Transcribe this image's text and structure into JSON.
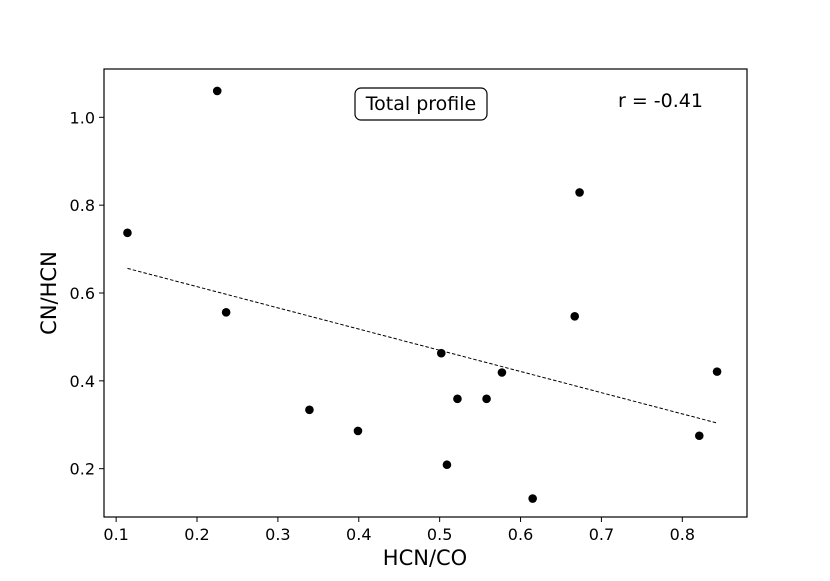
{
  "chart_data": {
    "type": "scatter",
    "title": "",
    "xlabel": "HCN/CO",
    "ylabel": "CN/HCN",
    "xlim": [
      0.085,
      0.88
    ],
    "ylim": [
      0.09,
      1.11
    ],
    "xticks": [
      0.1,
      0.2,
      0.3,
      0.4,
      0.5,
      0.6,
      0.7,
      0.8
    ],
    "xtick_labels": [
      "0.1",
      "0.2",
      "0.3",
      "0.4",
      "0.5",
      "0.6",
      "0.7",
      "0.8"
    ],
    "yticks": [
      0.2,
      0.4,
      0.6,
      0.8,
      1.0
    ],
    "ytick_labels": [
      "0.2",
      "0.4",
      "0.6",
      "0.8",
      "1.0"
    ],
    "grid": false,
    "points": [
      {
        "x": 0.114,
        "y": 0.737
      },
      {
        "x": 0.225,
        "y": 1.06
      },
      {
        "x": 0.236,
        "y": 0.556
      },
      {
        "x": 0.339,
        "y": 0.334
      },
      {
        "x": 0.399,
        "y": 0.286
      },
      {
        "x": 0.502,
        "y": 0.463
      },
      {
        "x": 0.509,
        "y": 0.209
      },
      {
        "x": 0.522,
        "y": 0.359
      },
      {
        "x": 0.558,
        "y": 0.359
      },
      {
        "x": 0.577,
        "y": 0.419
      },
      {
        "x": 0.615,
        "y": 0.132
      },
      {
        "x": 0.667,
        "y": 0.547
      },
      {
        "x": 0.673,
        "y": 0.829
      },
      {
        "x": 0.821,
        "y": 0.275
      },
      {
        "x": 0.843,
        "y": 0.421
      }
    ],
    "fit_line": {
      "style": "dashed",
      "x": [
        0.114,
        0.843
      ],
      "y": [
        0.656,
        0.304
      ]
    },
    "annotations": {
      "box_label": "Total profile",
      "r_label": "r = -0.41"
    },
    "colors": {
      "points": "#000000",
      "line": "#000000",
      "frame": "#000000"
    }
  }
}
